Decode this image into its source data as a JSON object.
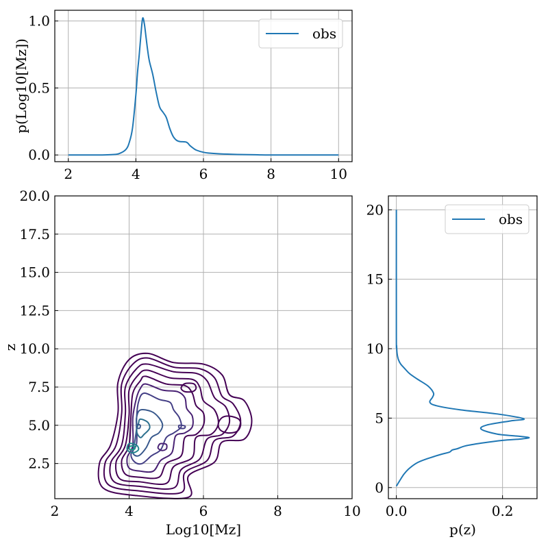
{
  "colors": {
    "series": "#1f77b4",
    "grid": "#b0b0b0",
    "contour_levels": [
      "#440154",
      "#440154",
      "#440154",
      "#440154",
      "#440154",
      "#482173",
      "#433e85",
      "#38588c",
      "#2d708e",
      "#25858e",
      "#1e9b8a"
    ]
  },
  "chart_data": [
    {
      "type": "line",
      "ylabel": "p(Log10[Mz])",
      "xlim": [
        1.6,
        10.4
      ],
      "ylim": [
        -0.05,
        1.08
      ],
      "xticks": [
        2,
        4,
        6,
        8,
        10
      ],
      "xticklabels": [
        "2",
        "4",
        "6",
        "8",
        "10"
      ],
      "yticks": [
        0.0,
        0.5,
        1.0
      ],
      "yticklabels": [
        "0.0",
        "0.5",
        "1.0"
      ],
      "grid": true,
      "legend": "top-right",
      "series": [
        {
          "name": "obs",
          "x": [
            2.0,
            3.0,
            3.3,
            3.5,
            3.7,
            3.8,
            3.9,
            4.0,
            4.05,
            4.1,
            4.15,
            4.2,
            4.25,
            4.3,
            4.35,
            4.4,
            4.5,
            4.6,
            4.7,
            4.8,
            4.9,
            5.0,
            5.1,
            5.2,
            5.3,
            5.5,
            5.6,
            5.7,
            5.8,
            6.0,
            6.2,
            6.5,
            7.0,
            7.5,
            8.0,
            10.0
          ],
          "y": [
            0.0,
            0.0,
            0.003,
            0.01,
            0.04,
            0.09,
            0.2,
            0.45,
            0.62,
            0.75,
            0.9,
            1.02,
            0.98,
            0.88,
            0.78,
            0.7,
            0.6,
            0.47,
            0.36,
            0.32,
            0.28,
            0.2,
            0.14,
            0.11,
            0.1,
            0.095,
            0.07,
            0.05,
            0.035,
            0.02,
            0.013,
            0.008,
            0.004,
            0.002,
            0.0,
            0.0
          ]
        }
      ]
    },
    {
      "type": "contour",
      "xlabel": "Log10[Mz]",
      "ylabel": "z",
      "xlim": [
        2,
        10
      ],
      "ylim": [
        0.2,
        20
      ],
      "xticks": [
        2,
        4,
        6,
        8,
        10
      ],
      "xticklabels": [
        "2",
        "4",
        "6",
        "8",
        "10"
      ],
      "yticks": [
        2.5,
        5.0,
        7.5,
        10.0,
        12.5,
        15.0,
        17.5,
        20.0
      ],
      "yticklabels": [
        "2.5",
        "5.0",
        "7.5",
        "10.0",
        "12.5",
        "15.0",
        "17.5",
        "20.0"
      ],
      "grid": true,
      "contours": [
        {
          "level": 1,
          "points": [
            [
              4.5,
              9.7
            ],
            [
              5.2,
              9.1
            ],
            [
              6.0,
              9.0
            ],
            [
              6.5,
              8.3
            ],
            [
              6.7,
              7.0
            ],
            [
              7.1,
              6.6
            ],
            [
              7.3,
              5.3
            ],
            [
              7.1,
              4.1
            ],
            [
              6.5,
              3.9
            ],
            [
              6.3,
              2.6
            ],
            [
              5.6,
              1.7
            ],
            [
              5.6,
              0.3
            ],
            [
              4.2,
              0.4
            ],
            [
              3.3,
              0.9
            ],
            [
              3.2,
              2.5
            ],
            [
              3.5,
              3.7
            ],
            [
              3.7,
              5.8
            ],
            [
              3.7,
              7.8
            ],
            [
              4.0,
              9.3
            ],
            [
              4.5,
              9.7
            ]
          ]
        },
        {
          "level": 2,
          "points": [
            [
              4.5,
              9.4
            ],
            [
              5.2,
              8.8
            ],
            [
              5.9,
              8.7
            ],
            [
              6.3,
              8.1
            ],
            [
              6.5,
              6.9
            ],
            [
              6.8,
              6.4
            ],
            [
              7.0,
              5.3
            ],
            [
              6.8,
              4.3
            ],
            [
              6.3,
              4.0
            ],
            [
              6.1,
              2.7
            ],
            [
              5.5,
              1.9
            ],
            [
              5.4,
              0.6
            ],
            [
              4.3,
              0.7
            ],
            [
              3.45,
              1.1
            ],
            [
              3.35,
              2.5
            ],
            [
              3.65,
              3.7
            ],
            [
              3.8,
              5.8
            ],
            [
              3.8,
              7.7
            ],
            [
              4.1,
              9.0
            ],
            [
              4.5,
              9.4
            ]
          ]
        },
        {
          "level": 3,
          "points": [
            [
              4.5,
              9.0
            ],
            [
              5.2,
              8.5
            ],
            [
              5.8,
              8.4
            ],
            [
              6.1,
              7.9
            ],
            [
              6.3,
              6.8
            ],
            [
              6.6,
              6.2
            ],
            [
              6.7,
              5.2
            ],
            [
              6.5,
              4.4
            ],
            [
              6.1,
              4.1
            ],
            [
              5.9,
              2.8
            ],
            [
              5.4,
              2.1
            ],
            [
              5.2,
              0.9
            ],
            [
              4.3,
              1.0
            ],
            [
              3.6,
              1.3
            ],
            [
              3.5,
              2.5
            ],
            [
              3.8,
              3.7
            ],
            [
              3.9,
              5.8
            ],
            [
              3.9,
              7.5
            ],
            [
              4.2,
              8.7
            ],
            [
              4.5,
              9.0
            ]
          ]
        },
        {
          "level": 4,
          "points": [
            [
              4.5,
              8.6
            ],
            [
              5.1,
              8.1
            ],
            [
              5.7,
              8.0
            ],
            [
              5.9,
              7.5
            ],
            [
              6.0,
              6.6
            ],
            [
              6.3,
              6.0
            ],
            [
              6.4,
              5.1
            ],
            [
              6.2,
              4.4
            ],
            [
              5.8,
              4.2
            ],
            [
              5.7,
              2.9
            ],
            [
              5.2,
              2.3
            ],
            [
              5.0,
              1.2
            ],
            [
              4.3,
              1.3
            ],
            [
              3.75,
              1.5
            ],
            [
              3.65,
              2.6
            ],
            [
              3.9,
              3.7
            ],
            [
              4.0,
              5.7
            ],
            [
              4.0,
              7.3
            ],
            [
              4.25,
              8.3
            ],
            [
              4.5,
              8.6
            ]
          ]
        },
        {
          "level": 5,
          "points": [
            [
              4.45,
              8.2
            ],
            [
              5.0,
              7.7
            ],
            [
              5.5,
              7.6
            ],
            [
              5.7,
              7.1
            ],
            [
              5.8,
              6.3
            ],
            [
              6.0,
              5.8
            ],
            [
              6.0,
              5.0
            ],
            [
              5.8,
              4.4
            ],
            [
              5.5,
              4.2
            ],
            [
              5.4,
              3.0
            ],
            [
              5.0,
              2.5
            ],
            [
              4.8,
              1.6
            ],
            [
              4.3,
              1.6
            ],
            [
              3.9,
              1.8
            ],
            [
              3.8,
              2.7
            ],
            [
              4.0,
              3.7
            ],
            [
              4.05,
              5.6
            ],
            [
              4.1,
              7.1
            ],
            [
              4.3,
              7.9
            ],
            [
              4.45,
              8.2
            ]
          ]
        },
        {
          "level": 6,
          "points": [
            [
              4.45,
              7.7
            ],
            [
              4.9,
              7.3
            ],
            [
              5.3,
              7.2
            ],
            [
              5.5,
              6.8
            ],
            [
              5.55,
              6.1
            ],
            [
              5.7,
              5.6
            ],
            [
              5.7,
              4.9
            ],
            [
              5.5,
              4.5
            ],
            [
              5.25,
              4.3
            ],
            [
              5.15,
              3.2
            ],
            [
              4.85,
              2.7
            ],
            [
              4.65,
              2.0
            ],
            [
              4.3,
              2.0
            ],
            [
              4.0,
              2.2
            ],
            [
              3.95,
              2.9
            ],
            [
              4.1,
              3.7
            ],
            [
              4.1,
              5.5
            ],
            [
              4.2,
              6.8
            ],
            [
              4.3,
              7.4
            ],
            [
              4.45,
              7.7
            ]
          ]
        },
        {
          "level": 7,
          "points": [
            [
              4.4,
              7.1
            ],
            [
              4.8,
              6.7
            ],
            [
              5.1,
              6.5
            ],
            [
              5.2,
              6.0
            ],
            [
              5.35,
              5.5
            ],
            [
              5.4,
              4.9
            ],
            [
              5.2,
              4.5
            ],
            [
              5.0,
              4.2
            ],
            [
              4.85,
              3.4
            ],
            [
              4.6,
              3.0
            ],
            [
              4.35,
              2.5
            ],
            [
              4.15,
              2.6
            ],
            [
              4.05,
              3.1
            ],
            [
              4.2,
              3.8
            ],
            [
              4.2,
              5.4
            ],
            [
              4.25,
              6.5
            ],
            [
              4.4,
              7.1
            ]
          ]
        },
        {
          "level": 8,
          "points": [
            [
              4.3,
              6.0
            ],
            [
              4.6,
              5.9
            ],
            [
              4.8,
              5.5
            ],
            [
              4.9,
              5.0
            ],
            [
              4.8,
              4.5
            ],
            [
              4.6,
              4.2
            ],
            [
              4.45,
              3.5
            ],
            [
              4.25,
              3.0
            ],
            [
              4.1,
              3.2
            ],
            [
              4.15,
              3.9
            ],
            [
              4.2,
              4.8
            ],
            [
              4.2,
              5.5
            ],
            [
              4.3,
              6.0
            ]
          ]
        },
        {
          "level": 9,
          "points": [
            [
              4.3,
              5.4
            ],
            [
              4.5,
              5.2
            ],
            [
              4.55,
              4.8
            ],
            [
              4.4,
              4.4
            ],
            [
              4.3,
              4.2
            ],
            [
              4.2,
              4.6
            ],
            [
              4.25,
              5.1
            ],
            [
              4.3,
              5.4
            ]
          ]
        },
        {
          "level": 10,
          "points": [
            [
              4.0,
              3.8
            ],
            [
              4.2,
              3.7
            ],
            [
              4.25,
              3.4
            ],
            [
              4.1,
              3.2
            ],
            [
              3.95,
              3.4
            ],
            [
              4.0,
              3.8
            ]
          ]
        },
        {
          "level": 11,
          "points": [
            [
              4.05,
              3.65
            ],
            [
              4.15,
              3.6
            ],
            [
              4.15,
              3.45
            ],
            [
              4.05,
              3.4
            ],
            [
              4.0,
              3.5
            ],
            [
              4.05,
              3.65
            ]
          ]
        },
        {
          "level": 5,
          "points": [
            [
              6.7,
              5.6
            ],
            [
              6.95,
              5.4
            ],
            [
              7.0,
              5.0
            ],
            [
              6.9,
              4.6
            ],
            [
              6.65,
              4.5
            ],
            [
              6.45,
              4.7
            ],
            [
              6.4,
              5.1
            ],
            [
              6.5,
              5.5
            ],
            [
              6.7,
              5.6
            ]
          ]
        },
        {
          "level": 5,
          "points": [
            [
              5.55,
              7.75
            ],
            [
              5.75,
              7.7
            ],
            [
              5.8,
              7.4
            ],
            [
              5.7,
              7.2
            ],
            [
              5.5,
              7.2
            ],
            [
              5.4,
              7.4
            ],
            [
              5.45,
              7.65
            ],
            [
              5.55,
              7.75
            ]
          ]
        },
        {
          "level": 6,
          "points": [
            [
              4.85,
              3.8
            ],
            [
              5.0,
              3.75
            ],
            [
              5.0,
              3.45
            ],
            [
              4.88,
              3.35
            ],
            [
              4.78,
              3.5
            ],
            [
              4.8,
              3.7
            ],
            [
              4.85,
              3.8
            ]
          ]
        },
        {
          "level": 7,
          "points": [
            [
              5.35,
              5.0
            ],
            [
              5.5,
              4.95
            ],
            [
              5.48,
              4.8
            ],
            [
              5.35,
              4.82
            ],
            [
              5.35,
              5.0
            ]
          ]
        },
        {
          "level": 8,
          "points": [
            [
              4.22,
              5.05
            ],
            [
              4.3,
              5.0
            ],
            [
              4.28,
              4.8
            ],
            [
              4.2,
              4.85
            ],
            [
              4.22,
              5.05
            ]
          ]
        }
      ]
    },
    {
      "type": "line",
      "xlabel": "p(z)",
      "xlim": [
        -0.015,
        0.265
      ],
      "ylim": [
        -0.8,
        21
      ],
      "xticks": [
        0.0,
        0.2
      ],
      "xticklabels": [
        "0.0",
        "0.2"
      ],
      "yticks": [
        0,
        5,
        10,
        15,
        20
      ],
      "yticklabels": [
        "0",
        "5",
        "10",
        "15",
        "20"
      ],
      "grid": true,
      "legend": "top-right",
      "series": [
        {
          "name": "obs",
          "x": [
            0.0,
            0.008,
            0.015,
            0.025,
            0.04,
            0.06,
            0.085,
            0.1,
            0.105,
            0.115,
            0.13,
            0.16,
            0.2,
            0.235,
            0.25,
            0.23,
            0.19,
            0.16,
            0.17,
            0.215,
            0.24,
            0.19,
            0.12,
            0.075,
            0.063,
            0.068,
            0.07,
            0.06,
            0.04,
            0.025,
            0.015,
            0.008,
            0.004,
            0.002,
            0.001,
            0.0005,
            0.0,
            0.0
          ],
          "y": [
            0.1,
            0.6,
            1.0,
            1.4,
            1.8,
            2.1,
            2.4,
            2.55,
            2.7,
            2.8,
            3.0,
            3.2,
            3.4,
            3.5,
            3.6,
            3.7,
            3.85,
            4.2,
            4.5,
            4.8,
            4.95,
            5.3,
            5.6,
            5.9,
            6.15,
            6.5,
            6.8,
            7.3,
            7.8,
            8.2,
            8.6,
            8.9,
            9.2,
            9.5,
            9.8,
            10.2,
            11.0,
            20.0
          ]
        }
      ]
    }
  ]
}
